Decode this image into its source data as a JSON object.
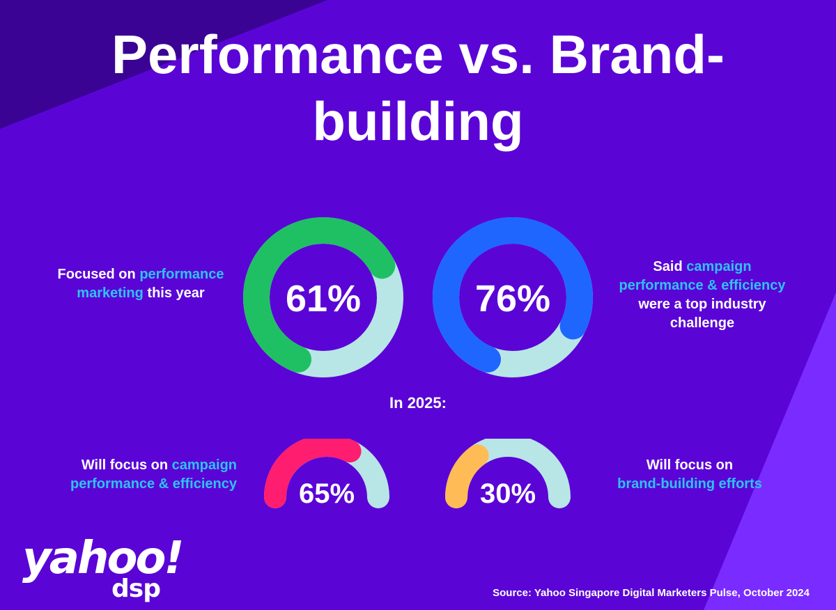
{
  "title": {
    "line1": "Performance vs. Brand-",
    "line2": "building"
  },
  "stats": [
    {
      "value": 61,
      "label": "61%",
      "caption": [
        "Focused on ",
        "performance",
        " marketing",
        " this year"
      ],
      "color": "#1fc063",
      "track": "#b8e6e6"
    },
    {
      "value": 76,
      "label": "76%",
      "caption": [
        "Said ",
        "campaign",
        " performance & efficiency",
        " were a top industry challenge"
      ],
      "color": "#1f66ff",
      "track": "#b8e6e6"
    }
  ],
  "section_label": "In 2025:",
  "plans": [
    {
      "value": 65,
      "label": "65%",
      "caption": [
        "Will focus on ",
        "campaign",
        " performance & efficiency"
      ],
      "color": "#ff1d6f",
      "track": "#b8e6e6"
    },
    {
      "value": 30,
      "label": "30%",
      "caption": [
        "Will focus on ",
        "brand-building efforts"
      ],
      "color": "#ffbb55",
      "track": "#b8e6e6"
    }
  ],
  "chart_data": [
    {
      "type": "pie",
      "categories": [
        "Focused on performance marketing this year"
      ],
      "values": [
        61
      ],
      "unit": "%"
    },
    {
      "type": "pie",
      "categories": [
        "Said campaign performance & efficiency were a top industry challenge"
      ],
      "values": [
        76
      ],
      "unit": "%"
    },
    {
      "type": "pie",
      "categories": [
        "Will focus on campaign performance & efficiency"
      ],
      "values": [
        65
      ],
      "unit": "%"
    },
    {
      "type": "pie",
      "categories": [
        "Will focus on brand-building efforts"
      ],
      "values": [
        30
      ],
      "unit": "%"
    }
  ],
  "logo": {
    "brand": "yahoo!",
    "product": "dsp"
  },
  "source": "Source: Yahoo Singapore Digital Marketers Pulse, October 2024",
  "colors": {
    "background": "#5a05d6",
    "highlight": "#2ec3f4",
    "text": "#ffffff"
  }
}
